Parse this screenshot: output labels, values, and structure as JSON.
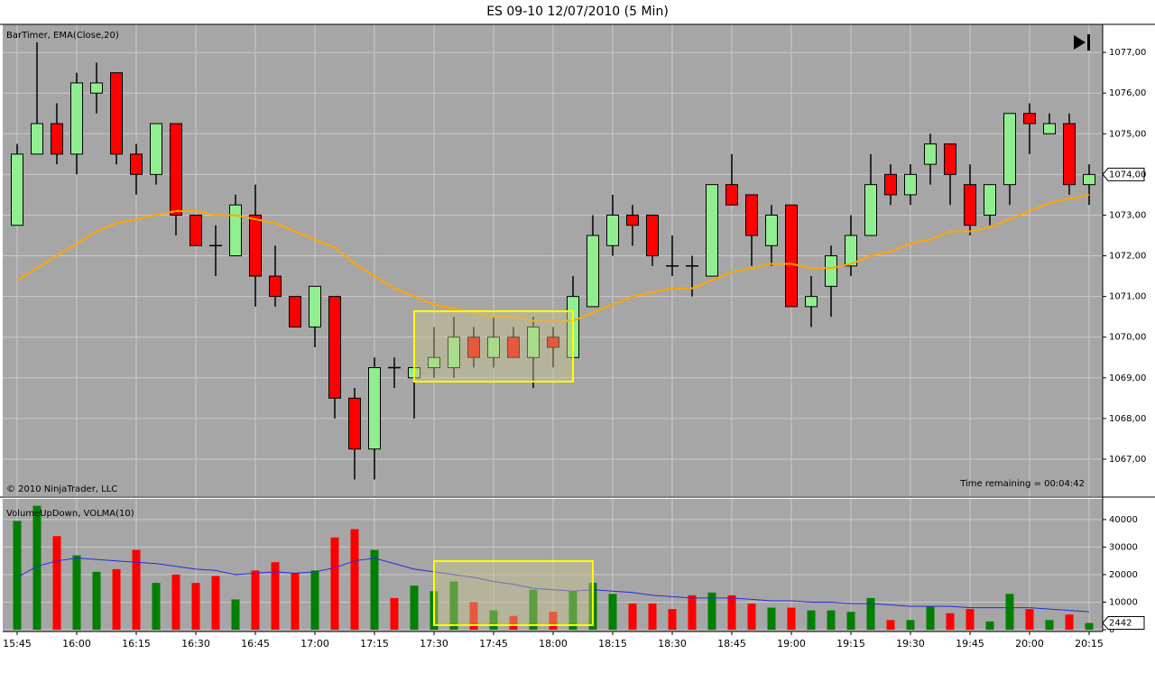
{
  "chart_data": [
    {
      "type": "candlestick",
      "title": "ES 09-10  12/07/2010 (5 Min)",
      "label": "BarTimer, EMA(Close,20)",
      "copyright": "© 2010 NinjaTrader, LLC",
      "timer": "Time remaining = 00:04:42",
      "open": [
        1072.75,
        1074.5,
        1075.25,
        1074.5,
        1076.0,
        1076.5,
        1074.5,
        1074.0,
        1075.25,
        1073.0,
        1072.25,
        1072.0,
        1073.0,
        1071.5,
        1071.0,
        1070.25,
        1071.0,
        1068.5,
        1067.25,
        1069.25,
        1069.0,
        1069.25,
        1069.25,
        1070.0,
        1069.5,
        1070.0,
        1069.5,
        1070.0,
        1069.5,
        1070.75,
        1072.25,
        1073.0,
        1073.0,
        1071.75,
        1071.75,
        1071.5,
        1073.75,
        1073.5,
        1072.25,
        1073.25,
        1070.75,
        1071.25,
        1071.75,
        1072.5,
        1074.0,
        1073.5,
        1074.25,
        1074.75,
        1073.75,
        1073.0,
        1073.75,
        1075.5,
        1075.0,
        1075.25,
        1073.75
      ],
      "high": [
        1074.75,
        1077.25,
        1075.75,
        1076.5,
        1076.75,
        1076.5,
        1074.75,
        1075.25,
        1075.25,
        1073.0,
        1072.75,
        1073.5,
        1073.75,
        1072.25,
        1071.0,
        1071.25,
        1071.0,
        1068.75,
        1069.5,
        1069.5,
        1069.5,
        1070.25,
        1070.5,
        1070.25,
        1070.5,
        1070.25,
        1070.5,
        1070.25,
        1071.5,
        1073.0,
        1073.5,
        1073.25,
        1073.0,
        1072.5,
        1072.0,
        1073.75,
        1074.5,
        1073.5,
        1073.25,
        1073.25,
        1071.5,
        1072.25,
        1073.0,
        1074.5,
        1074.25,
        1074.25,
        1075.0,
        1074.75,
        1074.25,
        1073.75,
        1075.5,
        1075.75,
        1075.5,
        1075.5,
        1074.25
      ],
      "low": [
        1072.75,
        1074.5,
        1074.25,
        1074.0,
        1075.5,
        1074.25,
        1073.5,
        1073.75,
        1072.5,
        1072.25,
        1071.5,
        1072.0,
        1070.75,
        1070.75,
        1070.25,
        1069.75,
        1068.0,
        1066.5,
        1066.5,
        1068.75,
        1068.0,
        1069.0,
        1069.0,
        1069.25,
        1069.25,
        1069.5,
        1068.75,
        1069.25,
        1069.5,
        1070.75,
        1072.0,
        1072.25,
        1071.75,
        1071.5,
        1071.0,
        1071.5,
        1073.25,
        1071.75,
        1071.75,
        1070.75,
        1070.25,
        1070.5,
        1071.5,
        1072.5,
        1073.25,
        1073.25,
        1073.75,
        1073.25,
        1072.5,
        1072.75,
        1073.25,
        1074.5,
        1075.0,
        1073.5,
        1073.25
      ],
      "close": [
        1074.5,
        1075.25,
        1074.5,
        1076.25,
        1076.25,
        1074.5,
        1074.0,
        1075.25,
        1073.0,
        1072.25,
        1072.25,
        1073.25,
        1071.5,
        1071.0,
        1070.25,
        1071.25,
        1068.5,
        1067.25,
        1069.25,
        1069.25,
        1069.25,
        1069.5,
        1070.0,
        1069.5,
        1070.0,
        1069.5,
        1070.25,
        1069.75,
        1071.0,
        1072.5,
        1073.0,
        1072.75,
        1072.0,
        1071.75,
        1071.75,
        1073.75,
        1073.25,
        1072.5,
        1073.0,
        1070.75,
        1071.0,
        1072.0,
        1072.5,
        1073.75,
        1073.5,
        1074.0,
        1074.75,
        1074.0,
        1072.75,
        1073.75,
        1075.5,
        1075.25,
        1075.25,
        1073.75,
        1074.0
      ],
      "up_color": "#90ee90",
      "down_color": "#ff0000",
      "line": {
        "color": "#ffa500",
        "values": [
          1071.4,
          1071.7,
          1072.0,
          1072.3,
          1072.6,
          1072.8,
          1072.9,
          1073.0,
          1073.1,
          1073.1,
          1073.0,
          1073.0,
          1072.9,
          1072.8,
          1072.6,
          1072.4,
          1072.2,
          1071.8,
          1071.5,
          1071.2,
          1071.0,
          1070.8,
          1070.7,
          1070.6,
          1070.5,
          1070.5,
          1070.4,
          1070.4,
          1070.4,
          1070.6,
          1070.8,
          1071.0,
          1071.1,
          1071.2,
          1071.2,
          1071.4,
          1071.6,
          1071.7,
          1071.8,
          1071.8,
          1071.7,
          1071.7,
          1071.8,
          1072.0,
          1072.1,
          1072.3,
          1072.4,
          1072.6,
          1072.6,
          1072.7,
          1072.9,
          1073.1,
          1073.3,
          1073.4,
          1073.5
        ]
      },
      "ylim": [
        1066.09,
        1077.69
      ],
      "yticks": [
        {
          "value": 1067,
          "label": "1067,00"
        },
        {
          "value": 1068,
          "label": "1068,00"
        },
        {
          "value": 1069,
          "label": "1069,00"
        },
        {
          "value": 1070,
          "label": "1070,00"
        },
        {
          "value": 1071,
          "label": "1071,00"
        },
        {
          "value": 1072,
          "label": "1072,00"
        },
        {
          "value": 1073,
          "label": "1073,00"
        },
        {
          "value": 1074,
          "label": "1074,00"
        },
        {
          "value": 1075,
          "label": "1075,00"
        },
        {
          "value": 1076,
          "label": "1076,00"
        },
        {
          "value": 1077,
          "label": "1077,00"
        }
      ],
      "last": {
        "value": 1074,
        "label": "1074,00"
      },
      "grid": true
    },
    {
      "type": "bar",
      "label": "VolumeUpDown, VOLMA(10)",
      "categories": [
        "15:45",
        null,
        null,
        "16:00",
        null,
        null,
        "16:15",
        null,
        null,
        "16:30",
        null,
        null,
        "16:45",
        null,
        null,
        "17:00",
        null,
        null,
        "17:15",
        null,
        null,
        "17:30",
        null,
        null,
        "17:45",
        null,
        null,
        "18:00",
        null,
        null,
        "18:15",
        null,
        null,
        "18:30",
        null,
        null,
        "18:45",
        null,
        null,
        "19:00",
        null,
        null,
        "19:15",
        null,
        null,
        "19:30",
        null,
        null,
        "19:45",
        null,
        null,
        "20:00",
        null,
        null,
        "20:15"
      ],
      "values": [
        39500,
        45000,
        34000,
        27000,
        21000,
        22000,
        29000,
        17000,
        20000,
        17000,
        19500,
        11000,
        21500,
        24500,
        20500,
        21500,
        33500,
        36500,
        29000,
        11500,
        16000,
        14000,
        17500,
        10000,
        7000,
        5000,
        14500,
        6500,
        14000,
        17000,
        13000,
        9500,
        9500,
        7500,
        12500,
        13500,
        12500,
        9500,
        8000,
        8000,
        7000,
        7000,
        6500,
        11500,
        3500,
        3500,
        8500,
        6000,
        7500,
        3000,
        13000,
        7500,
        3500,
        5500,
        2442
      ],
      "up_color": "#008000",
      "down_color": "#ff0000",
      "line": {
        "color": "#2a2ad8",
        "values": [
          19000,
          23000,
          25000,
          26000,
          25500,
          25000,
          24500,
          24000,
          23000,
          22000,
          21500,
          20000,
          20500,
          21000,
          20500,
          21000,
          22500,
          25000,
          26000,
          24000,
          22000,
          21000,
          20000,
          19000,
          17500,
          16500,
          15000,
          14500,
          14000,
          14500,
          14000,
          13500,
          12500,
          12000,
          11500,
          11500,
          11500,
          11000,
          10500,
          10500,
          10000,
          10000,
          9500,
          9500,
          9000,
          8500,
          8500,
          8500,
          8000,
          8000,
          8000,
          8000,
          7500,
          7000,
          6500
        ]
      },
      "ylim": [
        -650,
        47500
      ],
      "yticks": [
        0,
        10000,
        20000,
        30000,
        40000
      ],
      "last": 2442,
      "grid": true
    }
  ]
}
